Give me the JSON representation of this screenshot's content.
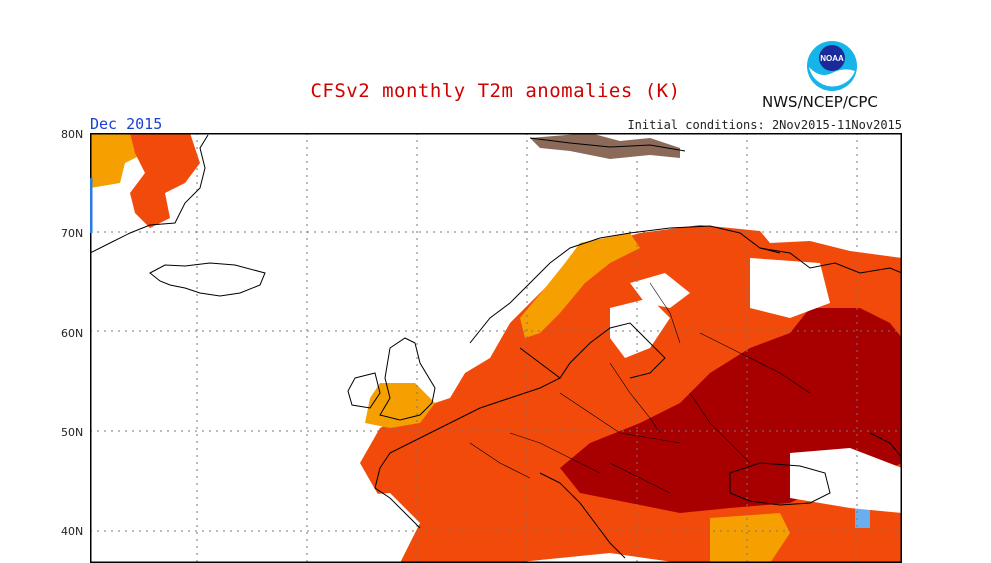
{
  "title": "CFSv2 monthly T2m anomalies (K)",
  "month": "Dec 2015",
  "initial_conditions": "Initial conditions: 2Nov2015-11Nov2015",
  "agency": "NWS/NCEP/CPC",
  "logo_text": "NOAA",
  "lat_labels": [
    "80N",
    "70N",
    "60N",
    "50N",
    "40N"
  ],
  "colors": {
    "anomaly_low_pos": "#f5a000",
    "anomaly_mid_pos": "#f24a0a",
    "anomaly_high_pos": "#a80000",
    "anomaly_neg": "#6aaef0",
    "svalbard": "#8c6a5a",
    "title": "#d00000",
    "month": "#1a3fd6"
  }
}
